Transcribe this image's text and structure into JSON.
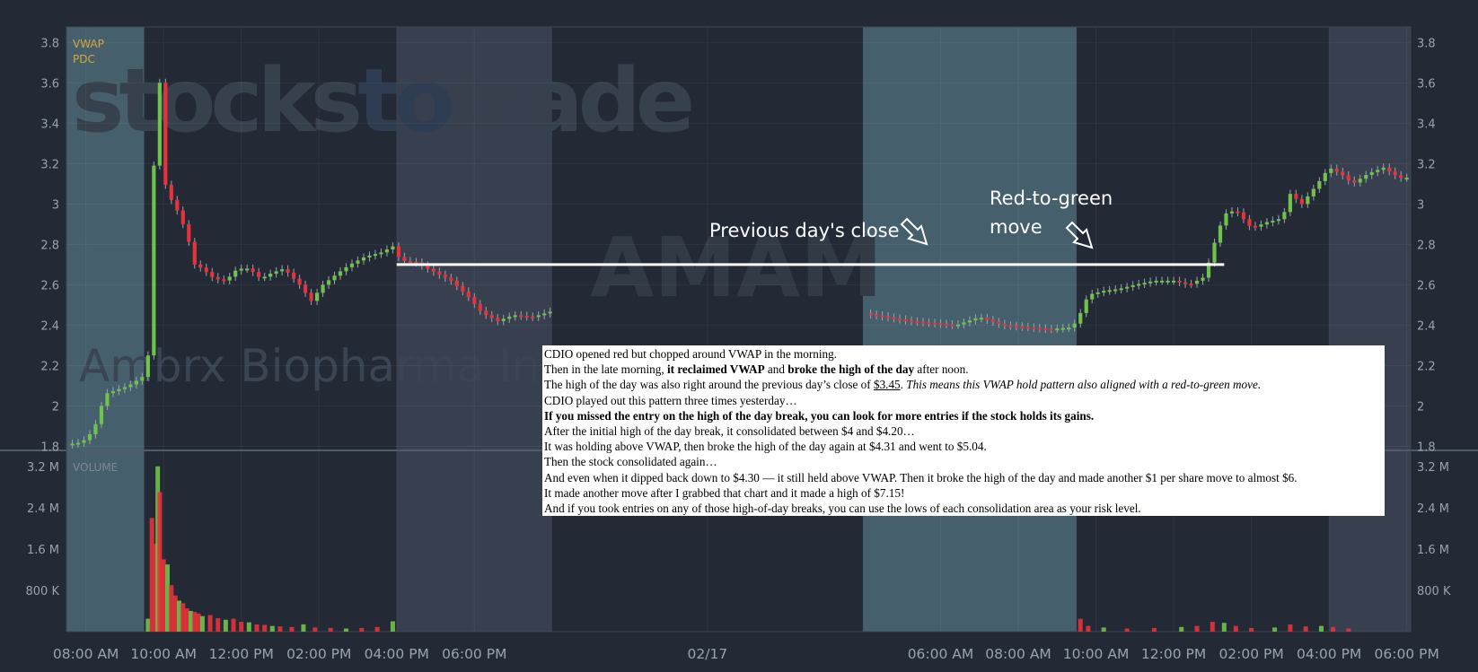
{
  "chart_data": {
    "type": "candlestick",
    "ticker_watermark": "AMAM",
    "company_watermark": "Ambrx Biopharma Inc",
    "brand_watermark": {
      "part1": "stocks",
      "part2": "to",
      "part3": "trade"
    },
    "indicator_labels": [
      "VWAP",
      "PDC"
    ],
    "volume_label": "VOLUME",
    "price_axis": {
      "ticks": [
        1.8,
        2,
        2.2,
        2.4,
        2.6,
        2.8,
        3,
        3.2,
        3.4,
        3.6,
        3.8
      ],
      "labels": [
        "1.8",
        "2",
        "2.2",
        "2.4",
        "2.6",
        "2.8",
        "3",
        "3.2",
        "3.4",
        "3.6",
        "3.8"
      ],
      "ylim": [
        1.78,
        3.85
      ]
    },
    "volume_axis": {
      "ticks": [
        800000,
        1600000,
        2400000,
        3200000
      ],
      "labels": [
        "800 K",
        "1.6 M",
        "2.4 M",
        "3.2 M"
      ],
      "ylim": [
        0,
        3300000
      ]
    },
    "x_axis": {
      "labels": [
        "08:00 AM",
        "10:00 AM",
        "12:00 PM",
        "02:00 PM",
        "04:00 PM",
        "06:00 PM",
        "02/17",
        "06:00 AM",
        "08:00 AM",
        "10:00 AM",
        "12:00 PM",
        "02:00 PM",
        "04:00 PM",
        "06:00 PM"
      ],
      "hours": [
        8,
        10,
        12,
        14,
        16,
        18,
        24,
        30,
        32,
        34,
        36,
        38,
        40,
        42
      ],
      "range_hours": [
        7.5,
        42.1
      ]
    },
    "sessions": [
      {
        "kind": "premarket",
        "from": 7.5,
        "to": 9.5
      },
      {
        "kind": "afterhours",
        "from": 16,
        "to": 20
      },
      {
        "kind": "premarket",
        "from": 28,
        "to": 33.5
      },
      {
        "kind": "afterhours",
        "from": 40,
        "to": 42.1
      }
    ],
    "price_path": [
      [
        7.5,
        1.81
      ],
      [
        7.9,
        1.82
      ],
      [
        8.2,
        1.88
      ],
      [
        8.5,
        2.06
      ],
      [
        8.8,
        2.08
      ],
      [
        9.1,
        2.1
      ],
      [
        9.5,
        2.15
      ],
      [
        9.6,
        2.25
      ],
      [
        9.7,
        2.9
      ],
      [
        9.8,
        3.48
      ],
      [
        9.9,
        3.6
      ],
      [
        10,
        3.12
      ],
      [
        10.2,
        3.02
      ],
      [
        10.4,
        2.95
      ],
      [
        10.6,
        2.85
      ],
      [
        10.8,
        2.7
      ],
      [
        11,
        2.68
      ],
      [
        11.3,
        2.63
      ],
      [
        11.6,
        2.62
      ],
      [
        11.9,
        2.68
      ],
      [
        12.2,
        2.68
      ],
      [
        12.5,
        2.63
      ],
      [
        12.8,
        2.66
      ],
      [
        13.1,
        2.68
      ],
      [
        13.5,
        2.6
      ],
      [
        13.8,
        2.52
      ],
      [
        14.1,
        2.6
      ],
      [
        14.5,
        2.66
      ],
      [
        14.8,
        2.7
      ],
      [
        15.2,
        2.74
      ],
      [
        15.6,
        2.76
      ],
      [
        15.9,
        2.79
      ],
      [
        16.1,
        2.72
      ],
      [
        16.5,
        2.71
      ],
      [
        16.9,
        2.67
      ],
      [
        17.4,
        2.62
      ],
      [
        17.8,
        2.55
      ],
      [
        18.2,
        2.46
      ],
      [
        18.6,
        2.42
      ],
      [
        19,
        2.45
      ],
      [
        19.5,
        2.44
      ],
      [
        20,
        2.47
      ],
      [
        28,
        2.46
      ],
      [
        28.6,
        2.44
      ],
      [
        29.2,
        2.42
      ],
      [
        29.8,
        2.41
      ],
      [
        30.4,
        2.4
      ],
      [
        31,
        2.44
      ],
      [
        31.6,
        2.4
      ],
      [
        32.2,
        2.39
      ],
      [
        32.8,
        2.38
      ],
      [
        33.4,
        2.39
      ],
      [
        33.6,
        2.46
      ],
      [
        33.8,
        2.55
      ],
      [
        34.2,
        2.57
      ],
      [
        34.6,
        2.58
      ],
      [
        35,
        2.6
      ],
      [
        35.5,
        2.62
      ],
      [
        36,
        2.62
      ],
      [
        36.4,
        2.6
      ],
      [
        36.8,
        2.64
      ],
      [
        37,
        2.78
      ],
      [
        37.3,
        2.95
      ],
      [
        37.6,
        2.97
      ],
      [
        38,
        2.88
      ],
      [
        38.4,
        2.91
      ],
      [
        38.8,
        2.93
      ],
      [
        39,
        3.05
      ],
      [
        39.3,
        3.0
      ],
      [
        39.7,
        3.1
      ],
      [
        40,
        3.18
      ],
      [
        40.3,
        3.15
      ],
      [
        40.6,
        3.1
      ],
      [
        41,
        3.15
      ],
      [
        41.4,
        3.18
      ],
      [
        41.8,
        3.13
      ],
      [
        42.05,
        3.13
      ]
    ],
    "volume_bars": [
      [
        9.6,
        250000
      ],
      [
        9.7,
        2200000
      ],
      [
        9.8,
        1700000
      ],
      [
        9.85,
        3200000
      ],
      [
        9.9,
        2700000
      ],
      [
        10.0,
        1400000
      ],
      [
        10.1,
        1300000
      ],
      [
        10.2,
        900000
      ],
      [
        10.3,
        700000
      ],
      [
        10.4,
        600000
      ],
      [
        10.5,
        550000
      ],
      [
        10.6,
        450000
      ],
      [
        10.7,
        400000
      ],
      [
        10.8,
        380000
      ],
      [
        10.9,
        350000
      ],
      [
        11.0,
        300000
      ],
      [
        11.2,
        320000
      ],
      [
        11.4,
        260000
      ],
      [
        11.6,
        230000
      ],
      [
        11.8,
        250000
      ],
      [
        12.0,
        190000
      ],
      [
        12.2,
        180000
      ],
      [
        12.4,
        140000
      ],
      [
        12.6,
        130000
      ],
      [
        12.8,
        110000
      ],
      [
        13.0,
        100000
      ],
      [
        13.3,
        90000
      ],
      [
        13.6,
        140000
      ],
      [
        13.9,
        80000
      ],
      [
        14.3,
        70000
      ],
      [
        14.7,
        60000
      ],
      [
        15.1,
        70000
      ],
      [
        15.5,
        90000
      ],
      [
        15.9,
        200000
      ],
      [
        33.6,
        250000
      ],
      [
        33.8,
        110000
      ],
      [
        34.2,
        80000
      ],
      [
        34.8,
        60000
      ],
      [
        35.5,
        70000
      ],
      [
        36.2,
        90000
      ],
      [
        36.6,
        110000
      ],
      [
        37.0,
        190000
      ],
      [
        37.3,
        170000
      ],
      [
        37.6,
        110000
      ],
      [
        38.0,
        70000
      ],
      [
        38.6,
        80000
      ],
      [
        39.0,
        140000
      ],
      [
        39.4,
        100000
      ],
      [
        39.8,
        110000
      ],
      [
        40.1,
        90000
      ],
      [
        40.5,
        60000
      ]
    ],
    "reference_line": {
      "price": 2.7,
      "from_hour": 16,
      "to_hour": 37.3
    },
    "annotations": [
      {
        "id": "prev",
        "lines": [
          "Previous day's close"
        ]
      },
      {
        "id": "r2g",
        "lines": [
          "Red-to-green",
          "move"
        ]
      }
    ]
  },
  "note": {
    "lines": [
      [
        [
          "CDIO opened red but chopped around VWAP in the morning.",
          ""
        ]
      ],
      [
        [
          "Then in the late morning, ",
          ""
        ],
        [
          "it reclaimed VWAP",
          "b"
        ],
        [
          " and ",
          ""
        ],
        [
          "broke the high of the day",
          "b"
        ],
        [
          " after noon.",
          ""
        ]
      ],
      [
        [
          "The high of the day was also right around the previous day’s close of ",
          ""
        ],
        [
          "$3.45",
          "u"
        ],
        [
          ". ",
          ""
        ],
        [
          "This means this VWAP hold pattern also aligned with a red-to-green move.",
          "i"
        ]
      ],
      [
        [
          "CDIO played out this pattern three times yesterday…",
          ""
        ]
      ],
      [
        [
          "If you missed the entry on the high of the day break, you can look for more entries if the stock holds its gains.",
          "b"
        ]
      ],
      [
        [
          "After the initial high of the day break, it consolidated between $4 and $4.20…",
          ""
        ]
      ],
      [
        [
          "It was holding above VWAP, then broke the high of the day again at $4.31 and went to $5.04.",
          ""
        ]
      ],
      [
        [
          "Then the stock consolidated again…",
          ""
        ]
      ],
      [
        [
          "And even when it dipped back down to $4.30 — it still held above VWAP. Then it broke the high of the day and made another $1 per share move to almost $6.",
          ""
        ]
      ],
      [
        [
          "It made another move after I grabbed that chart and it made a high of $7.15!",
          ""
        ]
      ],
      [
        [
          "And if you took entries on any of those high-of-day breaks, you can use the lows of each consolidation area as your risk level.",
          ""
        ]
      ]
    ]
  },
  "colors": {
    "background": "#232a35",
    "premarket": "#45606c",
    "afterhours": "#38404f",
    "up": "#6fc24a",
    "down": "#e8313a",
    "axis_text": "#98a3b0",
    "indicator": "#d9a53c",
    "divider": "#4e5b6b",
    "reference_line": "#ffffff"
  }
}
